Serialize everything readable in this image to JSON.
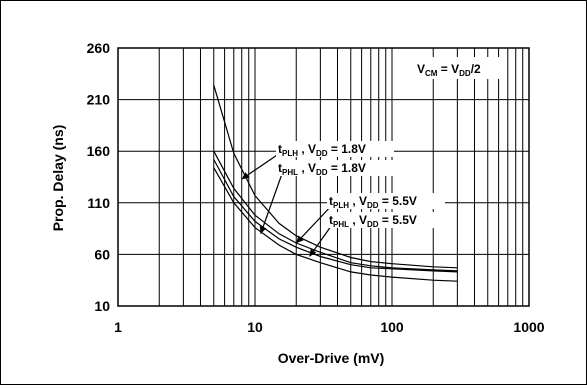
{
  "chart_data": {
    "type": "line",
    "title": "",
    "xlabel": "Over-Drive (mV)",
    "ylabel": "Prop. Delay (ns)",
    "xscale": "log",
    "xlim": [
      1,
      1000
    ],
    "ylim": [
      10,
      260
    ],
    "grid": true,
    "x_ticks": [
      1,
      10,
      100,
      1000
    ],
    "x_tick_labels": [
      "1",
      "10",
      "100",
      "1000"
    ],
    "y_ticks": [
      10,
      60,
      110,
      160,
      210,
      260
    ],
    "y_tick_labels": [
      "10",
      "60",
      "110",
      "160",
      "210",
      "260"
    ],
    "condition": {
      "main": "V",
      "sub1": "CM",
      "eq": " = V",
      "sub2": "DD",
      "tail": "/2"
    },
    "series": [
      {
        "name": "tPLH , VDD = 1.8V",
        "x": [
          5,
          7,
          10,
          15,
          20,
          30,
          50,
          70,
          100,
          200,
          300
        ],
        "y": [
          224,
          158,
          117,
          90,
          78,
          67,
          57,
          53,
          51,
          48,
          47
        ]
      },
      {
        "name": "tPHL , VDD = 1.8V",
        "x": [
          5,
          7,
          10,
          15,
          20,
          30,
          50,
          70,
          100,
          200,
          300
        ],
        "y": [
          160,
          124,
          98,
          80,
          71,
          62,
          52,
          49,
          47,
          45,
          44
        ]
      },
      {
        "name": "tPLH , VDD = 5.5V",
        "x": [
          5,
          7,
          10,
          15,
          20,
          30,
          50,
          70,
          100,
          200,
          300
        ],
        "y": [
          152,
          116,
          92,
          75,
          67,
          58,
          50,
          47,
          46,
          44,
          43
        ]
      },
      {
        "name": "tPHL , VDD = 5.5V",
        "x": [
          5,
          7,
          10,
          15,
          20,
          30,
          50,
          70,
          100,
          200,
          300
        ],
        "y": [
          144,
          110,
          86,
          69,
          60,
          52,
          43,
          40,
          38,
          35,
          34
        ]
      }
    ],
    "annotations": [
      {
        "series": 0,
        "main": "t",
        "sub1": "PLH",
        "mid": " , V",
        "sub2": "DD",
        "tail": " = 1.8V",
        "arrow_to": [
          8,
          133
        ]
      },
      {
        "series": 1,
        "main": "t",
        "sub1": "PHL",
        "mid": " , V",
        "sub2": "DD",
        "tail": " = 1.8V",
        "arrow_to": [
          11,
          80
        ]
      },
      {
        "series": 2,
        "main": "t",
        "sub1": "PLH",
        "mid": " , V",
        "sub2": "DD",
        "tail": " = 5.5V",
        "arrow_to": [
          20,
          71
        ]
      },
      {
        "series": 3,
        "main": "t",
        "sub1": "PHL",
        "mid": " , V",
        "sub2": "DD",
        "tail": " = 5.5V",
        "arrow_to": [
          25,
          58
        ]
      }
    ]
  }
}
